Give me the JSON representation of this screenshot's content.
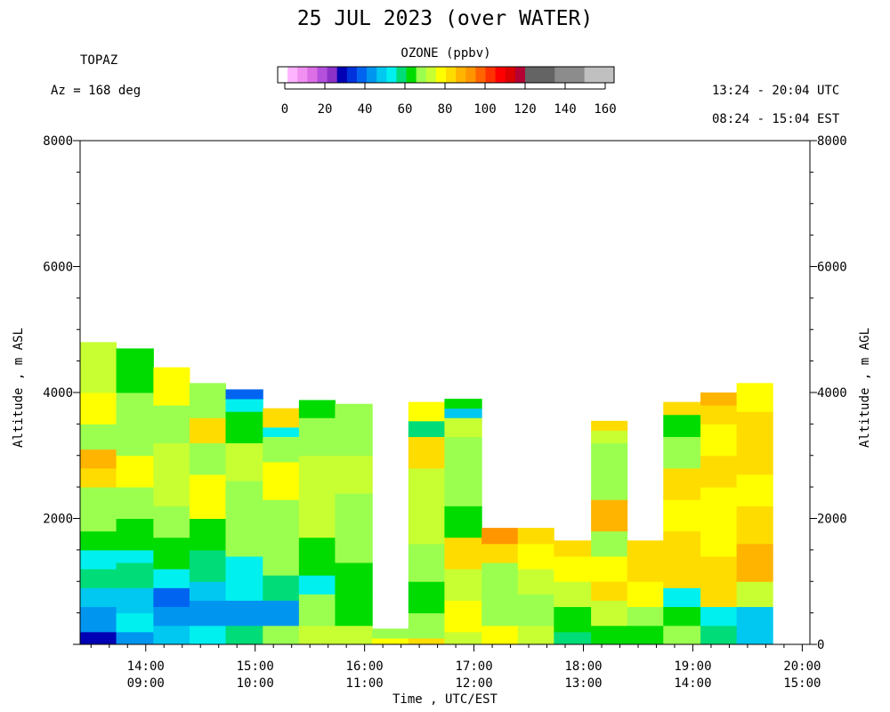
{
  "header": {
    "title": "25 JUL 2023 (over WATER)",
    "instrument": "TOPAZ",
    "azimuth": "Az = 168 deg",
    "utc_range": "13:24 - 20:04 UTC",
    "est_range": "08:24 - 15:04 EST"
  },
  "colorbar": {
    "label": "OZONE (ppbv)",
    "ticks": [
      "0",
      "20",
      "40",
      "60",
      "80",
      "100",
      "120",
      "140",
      "160"
    ],
    "colors": [
      "#ffffff",
      "#ffb4ff",
      "#f090f0",
      "#dc6ee6",
      "#b450dc",
      "#8c32c8",
      "#0000b4",
      "#0032dc",
      "#0064f0",
      "#0096f0",
      "#00c8f0",
      "#00f0f0",
      "#00dc78",
      "#00dc00",
      "#9bff50",
      "#c8ff32",
      "#ffff00",
      "#ffdc00",
      "#ffb400",
      "#ff9600",
      "#ff6400",
      "#ff3200",
      "#ff0000",
      "#dc0000",
      "#b40032",
      "#646464",
      "#646464",
      "#646464",
      "#8c8c8c",
      "#8c8c8c",
      "#8c8c8c",
      "#c0c0c0",
      "#c0c0c0",
      "#c0c0c0"
    ]
  },
  "chart_data": {
    "type": "heatmap",
    "title": "25 JUL 2023 (over WATER)",
    "xlabel": "Time , UTC/EST",
    "ylabel_left": "Altitude , m ASL",
    "ylabel_right": "Altitude , m AGL",
    "x_ticks_utc": [
      "14:00",
      "15:00",
      "16:00",
      "17:00",
      "18:00",
      "19:00",
      "20:00"
    ],
    "x_ticks_est": [
      "09:00",
      "10:00",
      "11:00",
      "12:00",
      "13:00",
      "14:00",
      "15:00"
    ],
    "y_ticks_left": [
      "2000",
      "4000",
      "6000",
      "8000"
    ],
    "y_ticks_right": [
      "0",
      "2000",
      "4000",
      "6000",
      "8000"
    ],
    "xlim_utc_hours": [
      13.4,
      20.07
    ],
    "ylim_m": [
      0,
      8000
    ],
    "value_range_ppbv": [
      0,
      160
    ],
    "profiles": [
      {
        "start": 13.4,
        "end": 13.73,
        "top": 4800,
        "segments": [
          [
            0,
            200,
            30
          ],
          [
            200,
            600,
            45
          ],
          [
            600,
            900,
            48
          ],
          [
            900,
            1200,
            58
          ],
          [
            1200,
            1500,
            52
          ],
          [
            1500,
            1800,
            65
          ],
          [
            1800,
            2500,
            68
          ],
          [
            2500,
            2800,
            80
          ],
          [
            2800,
            3100,
            88
          ],
          [
            3100,
            3500,
            70
          ],
          [
            3500,
            4000,
            76
          ],
          [
            4000,
            4800,
            72
          ]
        ]
      },
      {
        "start": 13.73,
        "end": 14.07,
        "top": 4700,
        "segments": [
          [
            0,
            200,
            45
          ],
          [
            200,
            500,
            52
          ],
          [
            500,
            900,
            48
          ],
          [
            900,
            1300,
            60
          ],
          [
            1300,
            1500,
            52
          ],
          [
            1500,
            2000,
            65
          ],
          [
            2000,
            2500,
            68
          ],
          [
            2500,
            3000,
            78
          ],
          [
            3000,
            3500,
            70
          ],
          [
            3500,
            4000,
            66
          ],
          [
            4000,
            4700,
            62
          ]
        ]
      },
      {
        "start": 14.07,
        "end": 14.4,
        "top": 4400,
        "segments": [
          [
            0,
            300,
            50
          ],
          [
            300,
            600,
            46
          ],
          [
            600,
            900,
            42
          ],
          [
            900,
            1200,
            56
          ],
          [
            1200,
            1700,
            62
          ],
          [
            1700,
            2200,
            68
          ],
          [
            2200,
            2700,
            72
          ],
          [
            2700,
            3200,
            74
          ],
          [
            3200,
            3800,
            70
          ],
          [
            3800,
            4400,
            78
          ]
        ]
      },
      {
        "start": 14.4,
        "end": 14.73,
        "top": 4150,
        "segments": [
          [
            0,
            300,
            55
          ],
          [
            300,
            700,
            46
          ],
          [
            700,
            1000,
            48
          ],
          [
            1000,
            1500,
            60
          ],
          [
            1500,
            2000,
            64
          ],
          [
            2000,
            2700,
            76
          ],
          [
            2700,
            3200,
            70
          ],
          [
            3200,
            3600,
            80
          ],
          [
            3600,
            4150,
            68
          ]
        ]
      },
      {
        "start": 14.73,
        "end": 15.07,
        "top": 4050,
        "segments": [
          [
            0,
            300,
            58
          ],
          [
            300,
            700,
            45
          ],
          [
            700,
            1000,
            56
          ],
          [
            1000,
            1400,
            55
          ],
          [
            1400,
            2000,
            66
          ],
          [
            2000,
            2600,
            70
          ],
          [
            2600,
            3200,
            74
          ],
          [
            3200,
            3700,
            64
          ],
          [
            3700,
            3900,
            52
          ],
          [
            3900,
            4050,
            40
          ]
        ]
      },
      {
        "start": 15.07,
        "end": 15.4,
        "top": 3750,
        "segments": [
          [
            0,
            300,
            70
          ],
          [
            300,
            700,
            44
          ],
          [
            700,
            1100,
            60
          ],
          [
            1100,
            1700,
            66
          ],
          [
            1700,
            2300,
            70
          ],
          [
            2300,
            2900,
            76
          ],
          [
            2900,
            3300,
            68
          ],
          [
            3300,
            3450,
            54
          ],
          [
            3450,
            3750,
            80
          ]
        ]
      },
      {
        "start": 15.4,
        "end": 15.73,
        "top": 3880,
        "segments": [
          [
            0,
            300,
            72
          ],
          [
            300,
            800,
            66
          ],
          [
            800,
            1100,
            56
          ],
          [
            1100,
            1700,
            64
          ],
          [
            1700,
            2300,
            72
          ],
          [
            2300,
            3000,
            74
          ],
          [
            3000,
            3600,
            68
          ],
          [
            3600,
            3880,
            62
          ]
        ]
      },
      {
        "start": 15.73,
        "end": 16.07,
        "top": 3820,
        "segments": [
          [
            0,
            300,
            72
          ],
          [
            300,
            800,
            62
          ],
          [
            800,
            1300,
            64
          ],
          [
            1300,
            1800,
            66
          ],
          [
            1800,
            2400,
            70
          ],
          [
            2400,
            3000,
            74
          ],
          [
            3000,
            3500,
            68
          ],
          [
            3500,
            3820,
            66
          ]
        ]
      },
      {
        "start": 16.07,
        "end": 16.4,
        "top": 250,
        "segments": [
          [
            0,
            100,
            76
          ],
          [
            100,
            250,
            70
          ]
        ]
      },
      {
        "start": 16.4,
        "end": 16.73,
        "top": 3850,
        "segments": [
          [
            0,
            100,
            80
          ],
          [
            100,
            500,
            66
          ],
          [
            500,
            1000,
            62
          ],
          [
            1000,
            1600,
            70
          ],
          [
            1600,
            2200,
            72
          ],
          [
            2200,
            2800,
            74
          ],
          [
            2800,
            3300,
            80
          ],
          [
            3300,
            3550,
            60
          ],
          [
            3550,
            3850,
            76
          ]
        ]
      },
      {
        "start": 16.73,
        "end": 17.07,
        "top": 3900,
        "segments": [
          [
            0,
            200,
            72
          ],
          [
            200,
            700,
            76
          ],
          [
            700,
            1200,
            72
          ],
          [
            1200,
            1700,
            80
          ],
          [
            1700,
            2200,
            64
          ],
          [
            2200,
            2800,
            68
          ],
          [
            2800,
            3300,
            70
          ],
          [
            3300,
            3600,
            72
          ],
          [
            3600,
            3750,
            50
          ],
          [
            3750,
            3900,
            64
          ]
        ]
      },
      {
        "start": 17.07,
        "end": 17.4,
        "top": 1850,
        "segments": [
          [
            0,
            300,
            76
          ],
          [
            300,
            800,
            70
          ],
          [
            800,
            1300,
            68
          ],
          [
            1300,
            1600,
            82
          ],
          [
            1600,
            1850,
            92
          ]
        ]
      },
      {
        "start": 17.4,
        "end": 17.73,
        "top": 1850,
        "segments": [
          [
            0,
            300,
            72
          ],
          [
            300,
            800,
            66
          ],
          [
            800,
            1200,
            74
          ],
          [
            1200,
            1600,
            78
          ],
          [
            1600,
            1850,
            80
          ]
        ]
      },
      {
        "start": 17.73,
        "end": 18.07,
        "top": 1650,
        "segments": [
          [
            0,
            200,
            58
          ],
          [
            200,
            600,
            64
          ],
          [
            600,
            1000,
            72
          ],
          [
            1000,
            1400,
            78
          ],
          [
            1400,
            1650,
            80
          ]
        ]
      },
      {
        "start": 18.07,
        "end": 18.4,
        "top": 3550,
        "segments": [
          [
            0,
            300,
            62
          ],
          [
            300,
            700,
            72
          ],
          [
            700,
            1000,
            80
          ],
          [
            1000,
            1400,
            76
          ],
          [
            1400,
            1800,
            70
          ],
          [
            1800,
            2300,
            86
          ],
          [
            2300,
            2800,
            70
          ],
          [
            2800,
            3200,
            66
          ],
          [
            3200,
            3400,
            74
          ],
          [
            3400,
            3550,
            82
          ]
        ]
      },
      {
        "start": 18.4,
        "end": 18.73,
        "top": 1650,
        "segments": [
          [
            0,
            300,
            64
          ],
          [
            300,
            600,
            66
          ],
          [
            600,
            1000,
            76
          ],
          [
            1000,
            1400,
            82
          ],
          [
            1400,
            1650,
            84
          ]
        ]
      },
      {
        "start": 18.73,
        "end": 19.07,
        "top": 3850,
        "segments": [
          [
            0,
            300,
            66
          ],
          [
            300,
            600,
            64
          ],
          [
            600,
            900,
            56
          ],
          [
            900,
            1200,
            82
          ],
          [
            1200,
            1800,
            84
          ],
          [
            1800,
            2300,
            76
          ],
          [
            2300,
            2800,
            80
          ],
          [
            2800,
            3300,
            70
          ],
          [
            3300,
            3650,
            64
          ],
          [
            3650,
            3850,
            80
          ]
        ]
      },
      {
        "start": 19.07,
        "end": 19.4,
        "top": 4000,
        "segments": [
          [
            0,
            300,
            60
          ],
          [
            300,
            600,
            52
          ],
          [
            600,
            1000,
            80
          ],
          [
            1000,
            1400,
            82
          ],
          [
            1400,
            2000,
            76
          ],
          [
            2000,
            2500,
            78
          ],
          [
            2500,
            3000,
            82
          ],
          [
            3000,
            3500,
            78
          ],
          [
            3500,
            3800,
            80
          ],
          [
            3800,
            4000,
            86
          ]
        ]
      },
      {
        "start": 19.4,
        "end": 19.73,
        "top": 4150,
        "segments": [
          [
            0,
            300,
            50
          ],
          [
            300,
            600,
            48
          ],
          [
            600,
            1000,
            74
          ],
          [
            1000,
            1600,
            88
          ],
          [
            1600,
            2200,
            80
          ],
          [
            2200,
            2700,
            76
          ],
          [
            2700,
            3300,
            80
          ],
          [
            3300,
            3700,
            84
          ],
          [
            3700,
            4150,
            78
          ]
        ]
      }
    ]
  }
}
